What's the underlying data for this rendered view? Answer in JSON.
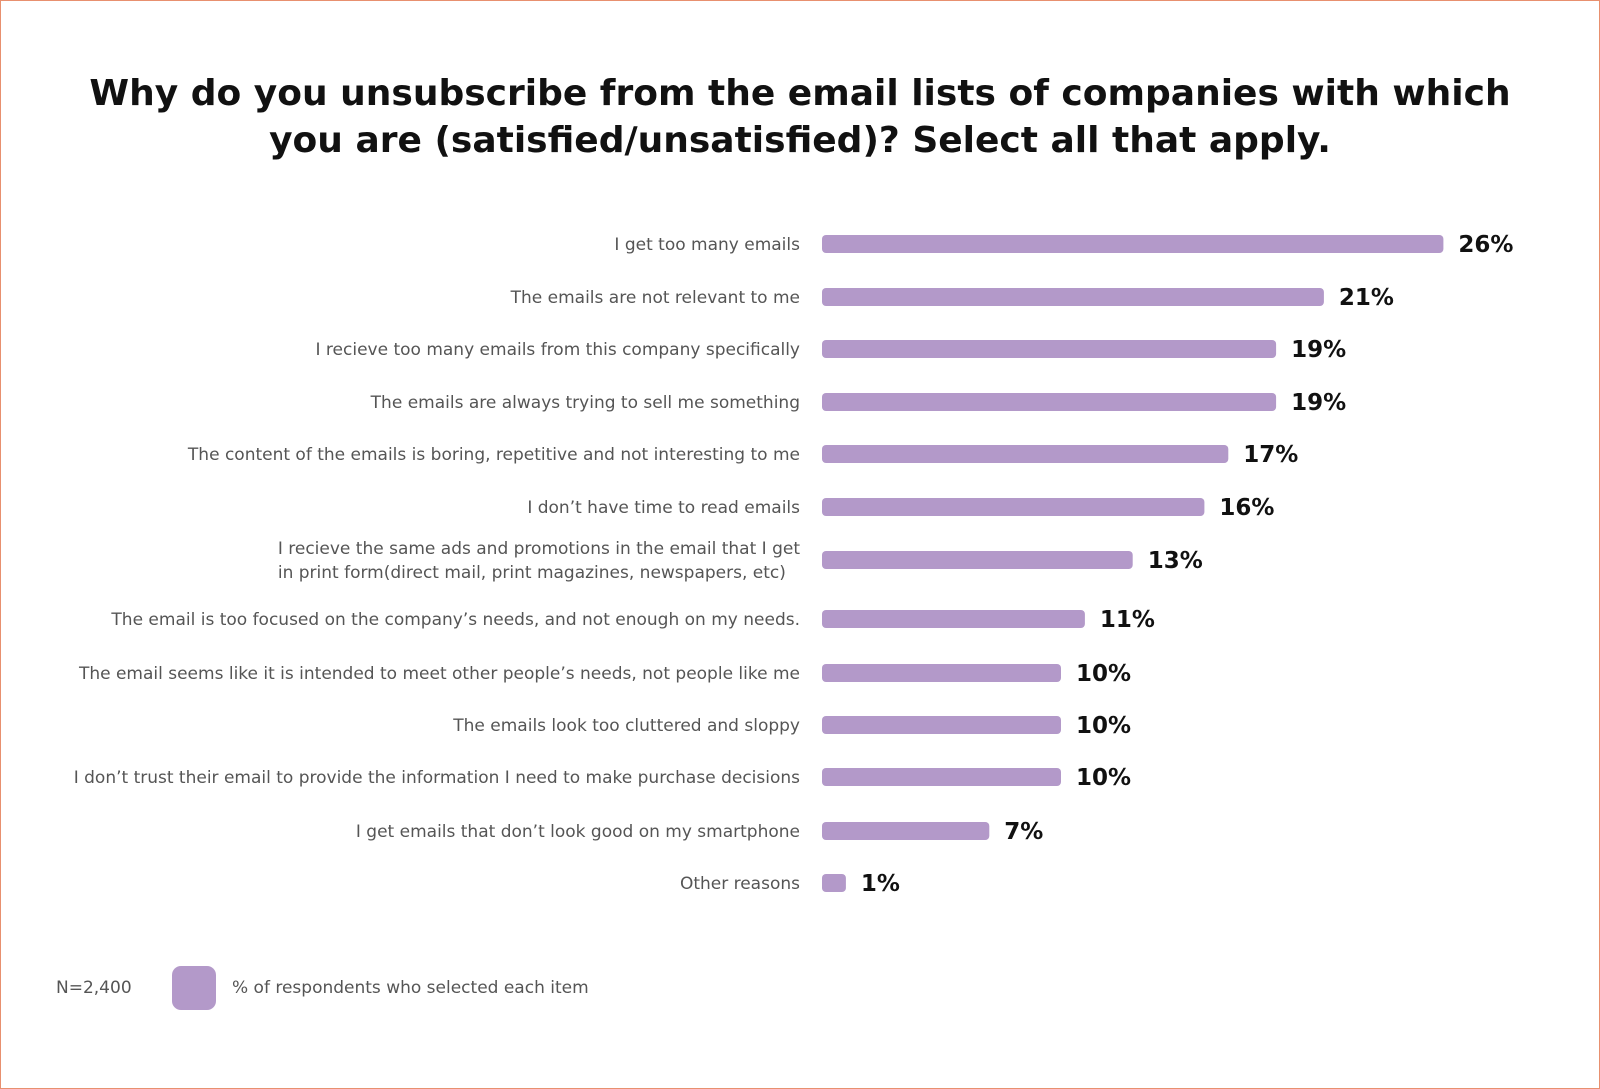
{
  "chart_data": {
    "type": "bar",
    "orientation": "horizontal",
    "title": [
      "Why do you unsubscribe from the email lists of companies with which",
      "you are (satisfied/unsatisfied)? Select all that apply."
    ],
    "categories": [
      [
        "I get too many emails"
      ],
      [
        "The emails are not relevant to me"
      ],
      [
        "I recieve too many emails from this company specifically"
      ],
      [
        "The emails are always trying to sell me something"
      ],
      [
        "The content of the emails is boring, repetitive and not interesting to me"
      ],
      [
        "I don’t have time to read emails"
      ],
      [
        "I recieve the same ads and promotions in the email that I get",
        "in print form(direct mail, print magazines, newspapers, etc)"
      ],
      [
        "The email is too focused on the company’s needs, and not enough on my needs."
      ],
      [
        "The email seems like it is intended to meet other people’s needs, not people like me"
      ],
      [
        "The emails look too cluttered and sloppy"
      ],
      [
        "I don’t trust their email to provide the information I need to make purchase decisions"
      ],
      [
        "I get emails that don’t look good on my smartphone"
      ],
      [
        "Other reasons"
      ]
    ],
    "values": [
      26,
      21,
      19,
      19,
      17,
      16,
      13,
      11,
      10,
      10,
      10,
      7,
      1
    ],
    "value_labels": [
      "26%",
      "21%",
      "19%",
      "19%",
      "17%",
      "16%",
      "13%",
      "11%",
      "10%",
      "10%",
      "10%",
      "7%",
      "1%"
    ],
    "bar_color": "#b399c9",
    "legend": {
      "placement": "bottom-left",
      "label": "% of respondents who selected each item"
    },
    "sample_size": "N=2,400",
    "grid": false
  }
}
